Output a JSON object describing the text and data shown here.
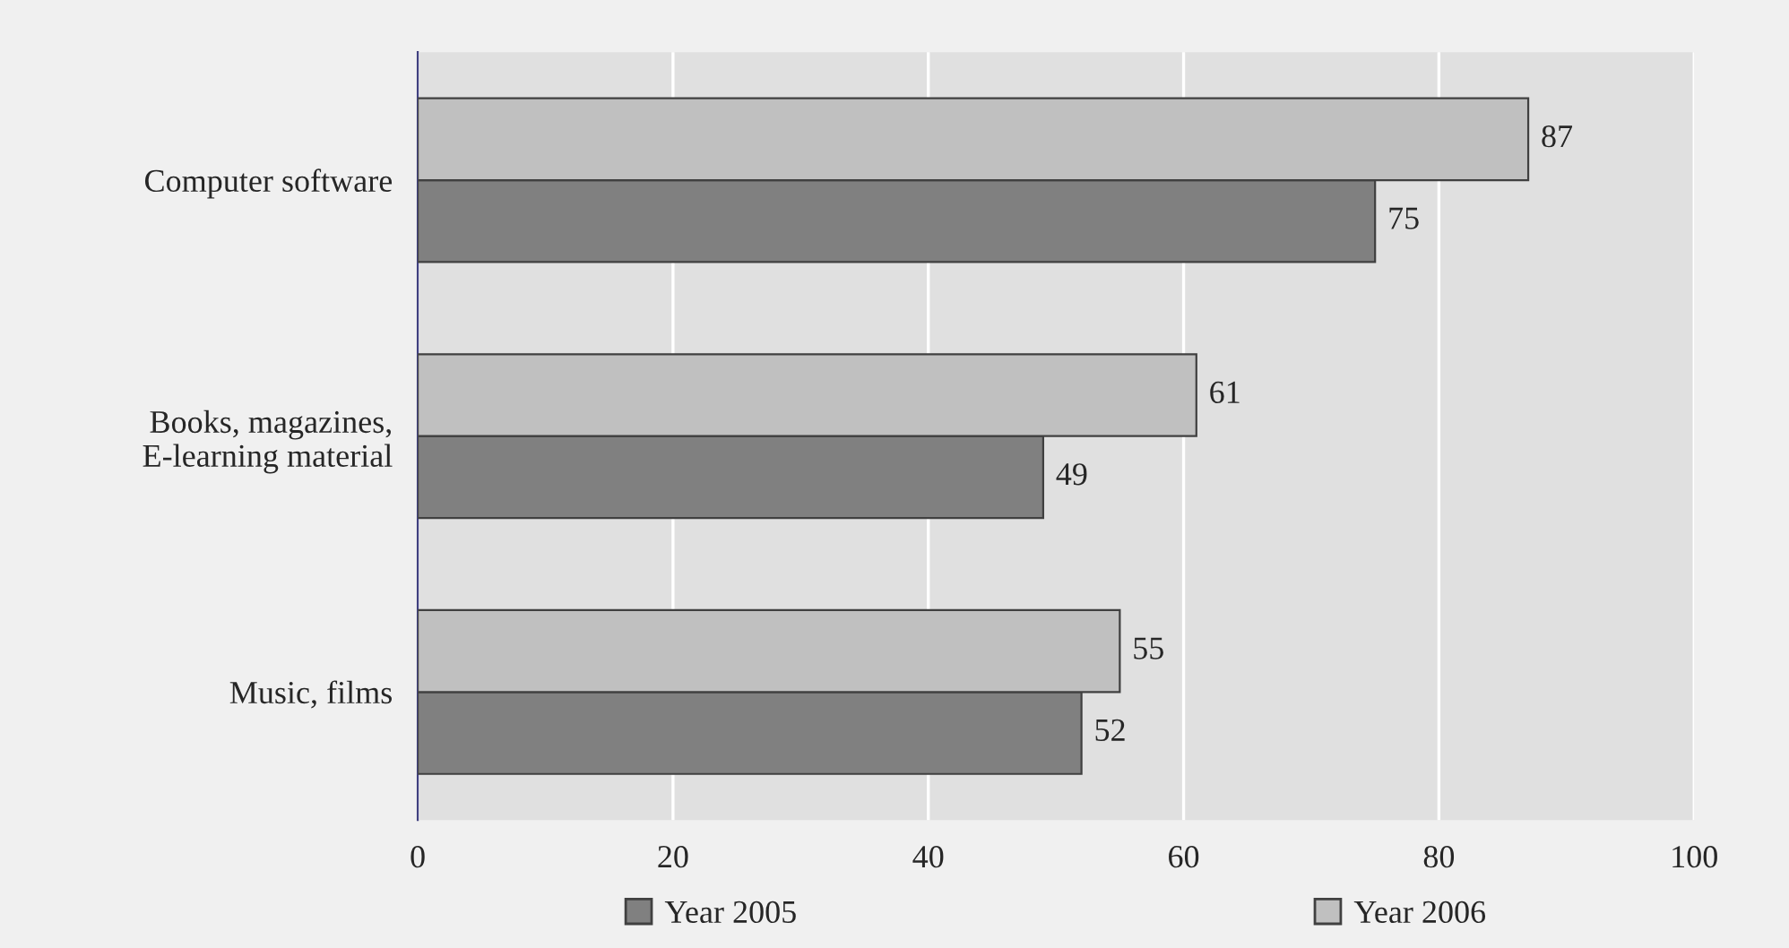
{
  "chart_data": {
    "type": "bar",
    "orientation": "horizontal",
    "categories": [
      "Computer software",
      "Books, magazines,\nE-learning material",
      "Music, films"
    ],
    "series": [
      {
        "name": "Year 2005",
        "color": "#808080",
        "values": [
          75,
          49,
          52
        ]
      },
      {
        "name": "Year 2006",
        "color": "#c0c0c0",
        "values": [
          87,
          61,
          55
        ]
      }
    ],
    "xlim": [
      0,
      100
    ],
    "xticks": [
      0,
      20,
      40,
      60,
      80,
      100
    ],
    "grid": "x",
    "data_labels": true,
    "legend": "bottom"
  }
}
